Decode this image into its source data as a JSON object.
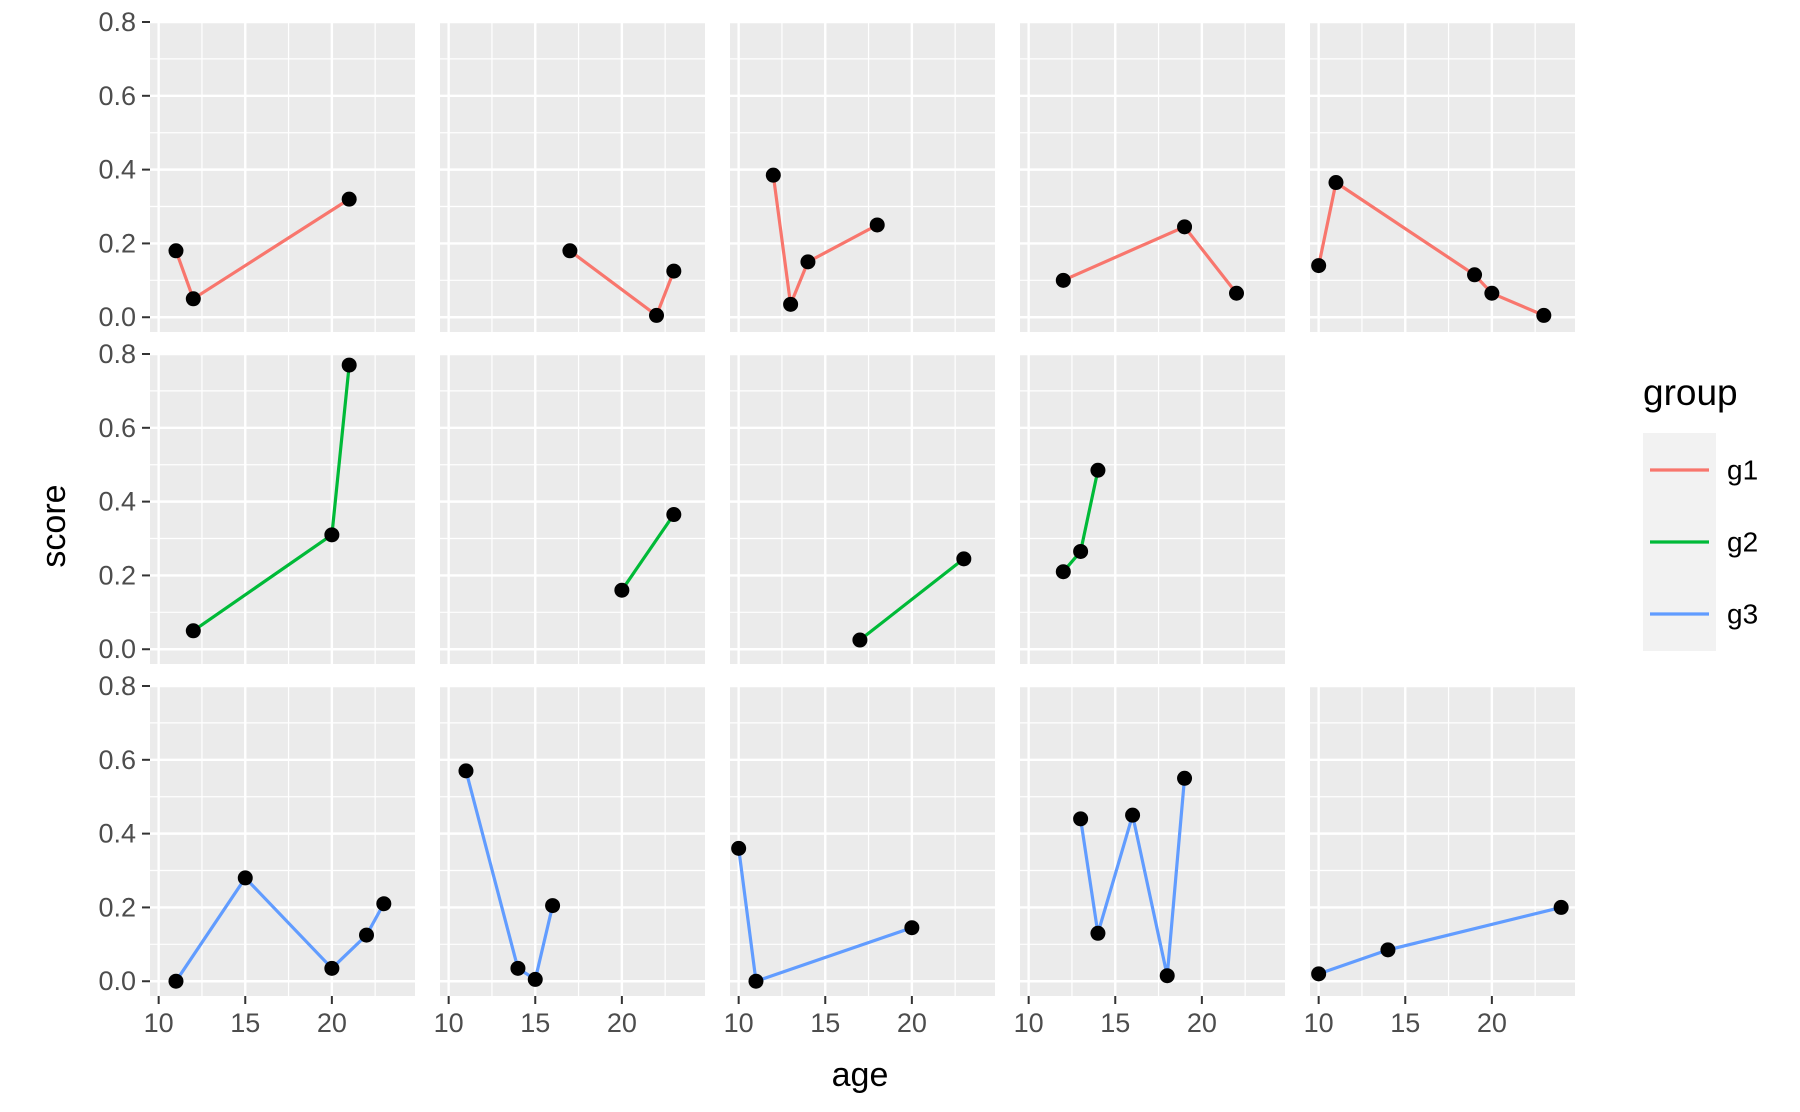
{
  "chart_data": {
    "type": "line",
    "layout": "faceted",
    "xlabel": "age",
    "ylabel": "score",
    "xlim": [
      9.5,
      24.8
    ],
    "ylim": [
      -0.04,
      0.8
    ],
    "x_ticks": [
      10,
      15,
      20
    ],
    "y_ticks": [
      0.0,
      0.2,
      0.4,
      0.6,
      0.8
    ],
    "y_tick_labels": [
      "0.0",
      "0.2",
      "0.4",
      "0.6",
      "0.8"
    ],
    "grid": true,
    "colors": {
      "g1": "#f8766d",
      "g2": "#00ba38",
      "g3": "#619cff",
      "points": "#000000",
      "panel_bg": "#ebebeb"
    },
    "legend": {
      "title": "group",
      "position": "right",
      "entries": [
        "g1",
        "g2",
        "g3"
      ]
    },
    "rows": [
      {
        "series": "g1",
        "panels": [
          {
            "x": [
              11,
              12,
              21
            ],
            "y": [
              0.18,
              0.05,
              0.32
            ]
          },
          {
            "x": [
              17,
              22,
              23
            ],
            "y": [
              0.18,
              0.005,
              0.125
            ]
          },
          {
            "x": [
              12,
              13,
              14,
              18
            ],
            "y": [
              0.385,
              0.035,
              0.15,
              0.25
            ]
          },
          {
            "x": [
              12,
              19,
              22
            ],
            "y": [
              0.1,
              0.245,
              0.065
            ]
          },
          {
            "x": [
              10,
              11,
              19,
              20,
              23
            ],
            "y": [
              0.14,
              0.365,
              0.115,
              0.065,
              0.005
            ]
          }
        ]
      },
      {
        "series": "g2",
        "panels": [
          {
            "x": [
              12,
              20,
              21
            ],
            "y": [
              0.05,
              0.31,
              0.77
            ]
          },
          {
            "x": [
              20,
              23
            ],
            "y": [
              0.16,
              0.365
            ]
          },
          {
            "x": [
              17,
              23
            ],
            "y": [
              0.025,
              0.245
            ]
          },
          {
            "x": [
              12,
              13,
              14
            ],
            "y": [
              0.21,
              0.265,
              0.485
            ]
          }
        ]
      },
      {
        "series": "g3",
        "panels": [
          {
            "x": [
              11,
              15,
              20,
              22,
              23
            ],
            "y": [
              0.0,
              0.28,
              0.035,
              0.125,
              0.21
            ]
          },
          {
            "x": [
              11,
              14,
              15,
              16
            ],
            "y": [
              0.57,
              0.035,
              0.005,
              0.205
            ]
          },
          {
            "x": [
              10,
              11,
              20
            ],
            "y": [
              0.36,
              0.0,
              0.145
            ]
          },
          {
            "x": [
              13,
              14,
              16,
              18,
              19
            ],
            "y": [
              0.44,
              0.13,
              0.45,
              0.015,
              0.55
            ]
          },
          {
            "x": [
              10,
              14,
              24
            ],
            "y": [
              0.02,
              0.085,
              0.2
            ]
          }
        ]
      }
    ]
  }
}
